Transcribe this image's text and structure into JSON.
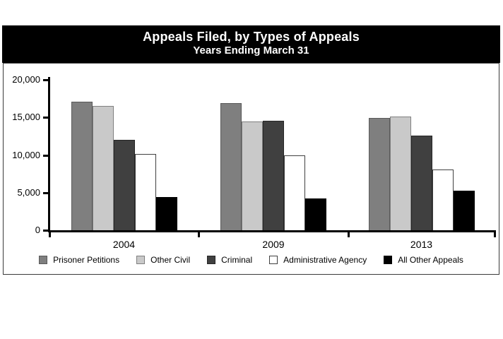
{
  "page": {
    "title": "Appeals Filed, by Types of Appeals",
    "subtitle": "Years Ending March 31"
  },
  "chart_data": {
    "type": "bar",
    "title": "Appeals Filed, by Types of Appeals",
    "subtitle": "Years Ending March 31",
    "categories": [
      "2004",
      "2009",
      "2013"
    ],
    "series": [
      {
        "name": "Prisoner Petitions",
        "color": "#7f7f7f",
        "border": "#595959",
        "values": [
          17100,
          16900,
          14900
        ]
      },
      {
        "name": "Other Civil",
        "color": "#c9c9c9",
        "border": "#808080",
        "values": [
          16500,
          14500,
          15100
        ]
      },
      {
        "name": "Criminal",
        "color": "#404040",
        "border": "#262626",
        "values": [
          12000,
          14600,
          12600
        ]
      },
      {
        "name": "Administrative Agency",
        "color": "#ffffff",
        "border": "#404040",
        "values": [
          10100,
          10000,
          8100
        ]
      },
      {
        "name": "All Other Appeals",
        "color": "#000000",
        "border": "#000000",
        "values": [
          4400,
          4200,
          5300
        ]
      }
    ],
    "xlabel": "",
    "ylabel": "",
    "ylim": [
      0,
      20000
    ],
    "yticks": [
      0,
      5000,
      10000,
      15000,
      20000
    ],
    "ytick_labels": [
      "0",
      "5,000",
      "10,000",
      "15,000",
      "20,000"
    ],
    "grid": false,
    "legend_position": "bottom",
    "colors": {
      "banner_bg": "#000000",
      "banner_text": "#ffffff",
      "axis": "#000000",
      "box_border": "#3a3a3a"
    }
  }
}
